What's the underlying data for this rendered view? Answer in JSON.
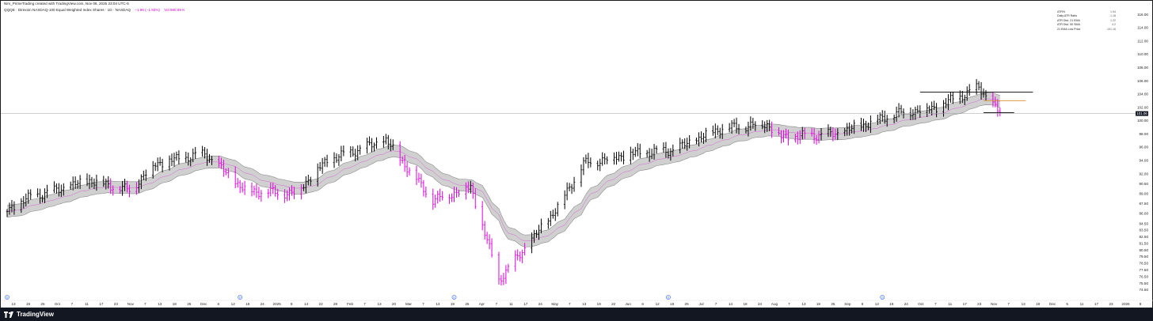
{
  "attribution": "Nirv_PrimeTrading created with TradingView.com, Nov 06, 2025 23:04 UTC-5",
  "title": "QQQE · Direxion NASDAQ-100 Equal Weighted Index Shares · 1D · NASDAQ",
  "change": "−1.96 (−1.93%)",
  "volume": "Vol 980.89 K",
  "info_panel": [
    {
      "label": "ATR%",
      "value": "1.94"
    },
    {
      "label": "Daily ATR Ratio",
      "value": "1.18"
    },
    {
      "label": "ATR Dist. 21 EMA",
      "value": "1.22"
    },
    {
      "label": "ATR Dist. 50 SMA",
      "value": "4.2"
    },
    {
      "label": "21 EMA Low Price",
      "value": "101.16"
    }
  ],
  "footer": {
    "brand": "TradingView"
  },
  "current_price_label": "101.06",
  "colors": {
    "up_bar": "#000000",
    "down_bar": "#e100e1",
    "band_fill": "#c8c8c8",
    "band_edge": "#8a8a8a",
    "ema_line": "#d466d4",
    "footer_bg": "#131722"
  },
  "chart_data": {
    "type": "ohlc-bar",
    "y_axis": {
      "min": 73.5,
      "max": 116.5,
      "scale": "linear",
      "ticks": [
        "116.00",
        "114.00",
        "112.00",
        "110.00",
        "108.00",
        "106.00",
        "104.00",
        "102.00",
        "100.00",
        "98.00",
        "96.00",
        "94.00",
        "92.00",
        "90.50",
        "89.00",
        "87.50",
        "86.00",
        "84.50",
        "83.50",
        "82.50",
        "81.50",
        "80.50",
        "79.50",
        "78.50",
        "77.50",
        "76.50",
        "75.50",
        "74.50"
      ]
    },
    "x_axis": {
      "labels": [
        "13",
        "19",
        "25",
        "Oct",
        "7",
        "11",
        "17",
        "23",
        "Nov",
        "7",
        "13",
        "19",
        "25",
        "Dec",
        "6",
        "12",
        "18",
        "24",
        "2025",
        "8",
        "14",
        "22",
        "28",
        "Feb",
        "7",
        "13",
        "20",
        "Mar",
        "7",
        "13",
        "19",
        "25",
        "Apr",
        "7",
        "11",
        "17",
        "24",
        "May",
        "7",
        "13",
        "19",
        "22",
        "Jun",
        "6",
        "12",
        "18",
        "25",
        "Jul",
        "7",
        "14",
        "18",
        "24",
        "Aug",
        "7",
        "13",
        "19",
        "25",
        "Sep",
        "8",
        "12",
        "18",
        "24",
        "Oct",
        "7",
        "11",
        "17",
        "23",
        "Nov",
        "7",
        "13",
        "19",
        "Dec",
        "5",
        "11",
        "17",
        "23",
        "2026",
        "8"
      ]
    },
    "keypoints": [
      {
        "date": "2024-09-10",
        "close": 86.5
      },
      {
        "date": "2024-09-20",
        "close": 88.5
      },
      {
        "date": "2024-10-01",
        "close": 89.5
      },
      {
        "date": "2024-10-15",
        "close": 91.0
      },
      {
        "date": "2024-11-01",
        "close": 89.5
      },
      {
        "date": "2024-11-12",
        "close": 93.5
      },
      {
        "date": "2024-12-03",
        "close": 95.0
      },
      {
        "date": "2024-12-20",
        "close": 89.5
      },
      {
        "date": "2025-01-10",
        "close": 89.0
      },
      {
        "date": "2025-01-24",
        "close": 94.0
      },
      {
        "date": "2025-02-18",
        "close": 97.0
      },
      {
        "date": "2025-03-10",
        "close": 88.0
      },
      {
        "date": "2025-03-26",
        "close": 90.0
      },
      {
        "date": "2025-04-07",
        "close": 76.0
      },
      {
        "date": "2025-04-21",
        "close": 82.0
      },
      {
        "date": "2025-05-02",
        "close": 87.0
      },
      {
        "date": "2025-05-13",
        "close": 93.5
      },
      {
        "date": "2025-06-02",
        "close": 95.0
      },
      {
        "date": "2025-06-20",
        "close": 95.5
      },
      {
        "date": "2025-07-10",
        "close": 98.8
      },
      {
        "date": "2025-07-30",
        "close": 99.5
      },
      {
        "date": "2025-08-05",
        "close": 97.5
      },
      {
        "date": "2025-08-29",
        "close": 98.0
      },
      {
        "date": "2025-09-22",
        "close": 101.0
      },
      {
        "date": "2025-10-10",
        "close": 102.0
      },
      {
        "date": "2025-10-28",
        "close": 105.0
      },
      {
        "date": "2025-11-06",
        "close": 101.06
      }
    ],
    "horizontal_lines": [
      {
        "from": "2025-10-03",
        "to": "2025-11-20",
        "price": 104.3,
        "color": "#000000"
      },
      {
        "from": "2025-10-30",
        "to": "2025-11-17",
        "price": 103.0,
        "color": "#d98a2b"
      },
      {
        "from": "2025-10-30",
        "to": "2025-11-12",
        "price": 101.2,
        "color": "#000000"
      }
    ],
    "price_line": 101.06,
    "event_markers": [
      "2024-09-10",
      "2024-12-18",
      "2025-03-19",
      "2025-06-18",
      "2025-09-17"
    ]
  }
}
